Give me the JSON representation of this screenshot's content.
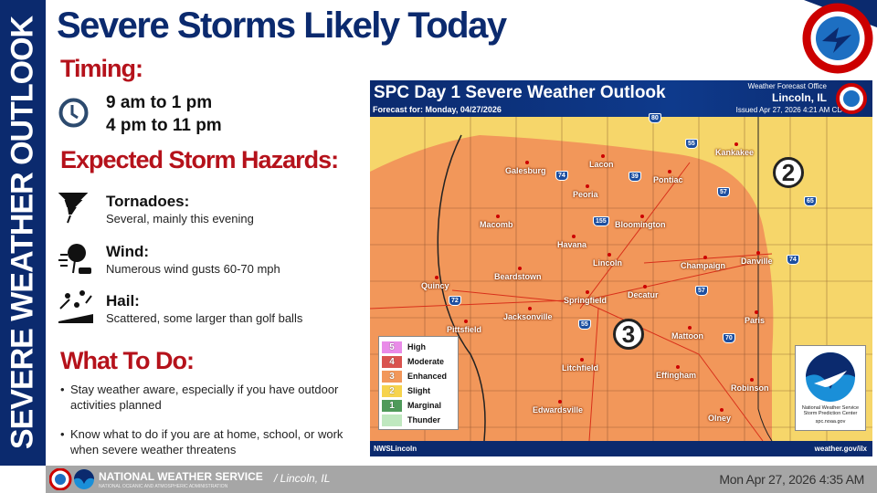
{
  "banner": "SEVERE WEATHER OUTLOOK",
  "title": "Severe Storms Likely Today",
  "timing": {
    "heading": "Timing:",
    "lines": [
      "9 am to 1 pm",
      "4 pm to 11 pm"
    ]
  },
  "hazards": {
    "heading": "Expected Storm Hazards:",
    "items": [
      {
        "name": "Tornadoes:",
        "desc": "Several, mainly this evening",
        "icon": "tornado-icon"
      },
      {
        "name": "Wind:",
        "desc": "Numerous wind gusts 60-70 mph",
        "icon": "wind-icon"
      },
      {
        "name": "Hail:",
        "desc": "Scattered, some larger than golf balls",
        "icon": "hail-icon"
      }
    ]
  },
  "todo": {
    "heading": "What To Do:",
    "items": [
      "Stay weather aware, especially if you have outdoor activities planned",
      "Know what to do if you are at home, school, or work when severe weather threatens"
    ]
  },
  "map": {
    "title": "SPC Day 1 Severe Weather Outlook",
    "forecast": "Forecast for: Monday, 04/27/2026",
    "office_label": "Weather Forecast Office",
    "office": "Lincoln, IL",
    "issued": "Issued Apr 27, 2026 4:21 AM CDT",
    "footer_left": "NWSLincoln",
    "footer_right": "weather.gov/ilx",
    "cities": [
      "Galesburg",
      "Lacon",
      "Peoria",
      "Pontiac",
      "Kankakee",
      "Macomb",
      "Bloomington",
      "Havana",
      "Lincoln",
      "Champaign",
      "Danville",
      "Beardstown",
      "Quincy",
      "Springfield",
      "Decatur",
      "Jacksonville",
      "Pittsfield",
      "Paris",
      "Mattoon",
      "Litchfield",
      "Effingham",
      "Robinson",
      "Edwardsville",
      "Olney"
    ],
    "interstates": [
      "80",
      "55",
      "74",
      "39",
      "57",
      "65",
      "155",
      "74",
      "72",
      "57",
      "55",
      "70"
    ],
    "risk_labels": [
      "2",
      "3"
    ],
    "legend": [
      {
        "n": "5",
        "label": "High",
        "color": "#e98be8"
      },
      {
        "n": "4",
        "label": "Moderate",
        "color": "#d9534f"
      },
      {
        "n": "3",
        "label": "Enhanced",
        "color": "#f2975a"
      },
      {
        "n": "2",
        "label": "Slight",
        "color": "#f6d34d"
      },
      {
        "n": "1",
        "label": "Marginal",
        "color": "#4f9a5a"
      },
      {
        "n": "",
        "label": "Thunder",
        "color": "#bfe8bf"
      }
    ],
    "noaa": {
      "logo": "NOAA",
      "l1": "National Weather Service",
      "l2": "Storm Prediction Center",
      "l3": "spc.noaa.gov"
    }
  },
  "footer": {
    "org": "NATIONAL WEATHER SERVICE",
    "sub": "NATIONAL OCEANIC AND ATMOSPHERIC ADMINISTRATION",
    "city": "/ Lincoln, IL",
    "timestamp": "Mon Apr 27, 2026 4:35 AM"
  },
  "corner_logo": "NATIONAL WEATHER SERVICE",
  "colors": {
    "navy": "#0b2a6e",
    "red": "#b5121b",
    "enhanced": "#f2975a",
    "slight": "#f6d34d"
  }
}
